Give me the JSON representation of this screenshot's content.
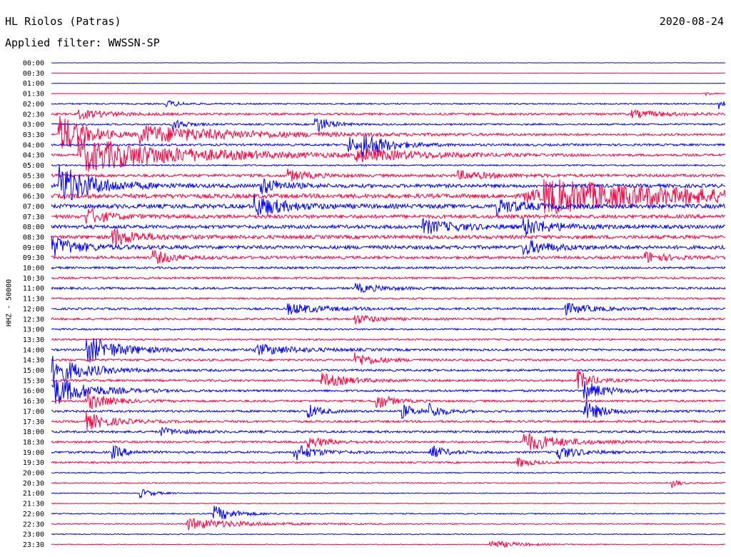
{
  "header": {
    "station": "HL Riolos (Patras)",
    "date": "2020-08-24",
    "filter": "Applied filter: WWSSN-SP"
  },
  "chart_data": {
    "type": "line",
    "title": "HL Riolos (Patras)",
    "subtitle": "Applied filter: WWSSN-SP",
    "ylabel": "HHZ - 50000",
    "xlabel": "",
    "grid": false,
    "colors": {
      "even": "#0000ff",
      "odd": "#ff0040"
    },
    "rows": [
      "00:00",
      "00:30",
      "01:00",
      "01:30",
      "02:00",
      "02:30",
      "03:00",
      "03:30",
      "04:00",
      "04:30",
      "05:00",
      "05:30",
      "06:00",
      "06:30",
      "07:00",
      "07:30",
      "08:00",
      "08:30",
      "09:00",
      "09:30",
      "10:00",
      "10:30",
      "11:00",
      "11:30",
      "12:00",
      "12:30",
      "13:00",
      "13:30",
      "14:00",
      "14:30",
      "15:00",
      "15:30",
      "16:00",
      "16:30",
      "17:00",
      "17:30",
      "18:00",
      "18:30",
      "19:00",
      "19:30",
      "20:00",
      "20:30",
      "21:00",
      "21:30",
      "22:00",
      "22:30",
      "23:00",
      "23:30"
    ],
    "noise_level": [
      0.2,
      0.2,
      0.2,
      0.3,
      1.0,
      1.5,
      1.2,
      1.5,
      1.5,
      1.5,
      1.0,
      2.0,
      2.5,
      3.0,
      3.0,
      2.5,
      2.5,
      2.5,
      2.5,
      2.0,
      1.5,
      1.5,
      1.5,
      1.2,
      1.5,
      1.5,
      1.2,
      1.2,
      1.5,
      1.5,
      1.5,
      1.5,
      1.5,
      1.5,
      1.5,
      1.5,
      1.5,
      1.5,
      1.5,
      1.2,
      0.8,
      0.8,
      0.6,
      0.6,
      0.8,
      0.8,
      0.6,
      0.6
    ],
    "events": [
      {
        "row": 3,
        "t": 0.97,
        "amp": 4,
        "dur": 0.01
      },
      {
        "row": 4,
        "t": 0.99,
        "amp": 8,
        "dur": 0.01
      },
      {
        "row": 4,
        "t": 0.17,
        "amp": 5,
        "dur": 0.02
      },
      {
        "row": 5,
        "t": 0.04,
        "amp": 6,
        "dur": 0.05
      },
      {
        "row": 5,
        "t": 0.86,
        "amp": 5,
        "dur": 0.05
      },
      {
        "row": 6,
        "t": 0.39,
        "amp": 14,
        "dur": 0.02
      },
      {
        "row": 6,
        "t": 0.18,
        "amp": 8,
        "dur": 0.02
      },
      {
        "row": 7,
        "t": 0.01,
        "amp": 30,
        "dur": 0.04
      },
      {
        "row": 7,
        "t": 0.13,
        "amp": 12,
        "dur": 0.15
      },
      {
        "row": 8,
        "t": 0.44,
        "amp": 12,
        "dur": 0.02
      },
      {
        "row": 8,
        "t": 0.46,
        "amp": 16,
        "dur": 0.04
      },
      {
        "row": 9,
        "t": 0.04,
        "amp": 25,
        "dur": 0.15
      },
      {
        "row": 9,
        "t": 0.45,
        "amp": 8,
        "dur": 0.1
      },
      {
        "row": 11,
        "t": 0.6,
        "amp": 6,
        "dur": 0.05
      },
      {
        "row": 11,
        "t": 0.35,
        "amp": 8,
        "dur": 0.03
      },
      {
        "row": 12,
        "t": 0.01,
        "amp": 30,
        "dur": 0.05
      },
      {
        "row": 12,
        "t": 0.31,
        "amp": 12,
        "dur": 0.03
      },
      {
        "row": 13,
        "t": 0.7,
        "amp": 8,
        "dur": 0.06
      },
      {
        "row": 13,
        "t": 0.73,
        "amp": 20,
        "dur": 0.25
      },
      {
        "row": 14,
        "t": 0.3,
        "amp": 16,
        "dur": 0.04
      },
      {
        "row": 14,
        "t": 0.66,
        "amp": 10,
        "dur": 0.04
      },
      {
        "row": 15,
        "t": 0.05,
        "amp": 12,
        "dur": 0.03
      },
      {
        "row": 16,
        "t": 0.55,
        "amp": 10,
        "dur": 0.05
      },
      {
        "row": 16,
        "t": 0.7,
        "amp": 12,
        "dur": 0.04
      },
      {
        "row": 17,
        "t": 0.09,
        "amp": 12,
        "dur": 0.04
      },
      {
        "row": 18,
        "t": 0.0,
        "amp": 14,
        "dur": 0.04
      },
      {
        "row": 18,
        "t": 0.7,
        "amp": 10,
        "dur": 0.04
      },
      {
        "row": 19,
        "t": 0.15,
        "amp": 10,
        "dur": 0.03
      },
      {
        "row": 19,
        "t": 0.88,
        "amp": 8,
        "dur": 0.03
      },
      {
        "row": 22,
        "t": 0.45,
        "amp": 6,
        "dur": 0.04
      },
      {
        "row": 24,
        "t": 0.35,
        "amp": 8,
        "dur": 0.05
      },
      {
        "row": 24,
        "t": 0.76,
        "amp": 8,
        "dur": 0.04
      },
      {
        "row": 25,
        "t": 0.45,
        "amp": 7,
        "dur": 0.03
      },
      {
        "row": 28,
        "t": 0.05,
        "amp": 20,
        "dur": 0.05
      },
      {
        "row": 28,
        "t": 0.3,
        "amp": 8,
        "dur": 0.06
      },
      {
        "row": 29,
        "t": 0.45,
        "amp": 10,
        "dur": 0.03
      },
      {
        "row": 30,
        "t": 0.0,
        "amp": 20,
        "dur": 0.05
      },
      {
        "row": 31,
        "t": 0.4,
        "amp": 10,
        "dur": 0.04
      },
      {
        "row": 31,
        "t": 0.78,
        "amp": 16,
        "dur": 0.02
      },
      {
        "row": 32,
        "t": 0.0,
        "amp": 22,
        "dur": 0.05
      },
      {
        "row": 32,
        "t": 0.79,
        "amp": 14,
        "dur": 0.03
      },
      {
        "row": 33,
        "t": 0.48,
        "amp": 14,
        "dur": 0.02
      },
      {
        "row": 33,
        "t": 0.05,
        "amp": 14,
        "dur": 0.03
      },
      {
        "row": 34,
        "t": 0.38,
        "amp": 10,
        "dur": 0.02
      },
      {
        "row": 34,
        "t": 0.52,
        "amp": 10,
        "dur": 0.02
      },
      {
        "row": 34,
        "t": 0.56,
        "amp": 10,
        "dur": 0.02
      },
      {
        "row": 34,
        "t": 0.79,
        "amp": 14,
        "dur": 0.03
      },
      {
        "row": 35,
        "t": 0.05,
        "amp": 12,
        "dur": 0.04
      },
      {
        "row": 36,
        "t": 0.16,
        "amp": 6,
        "dur": 0.03
      },
      {
        "row": 37,
        "t": 0.7,
        "amp": 14,
        "dur": 0.05
      },
      {
        "row": 37,
        "t": 0.38,
        "amp": 8,
        "dur": 0.03
      },
      {
        "row": 38,
        "t": 0.09,
        "amp": 10,
        "dur": 0.02
      },
      {
        "row": 38,
        "t": 0.36,
        "amp": 12,
        "dur": 0.03
      },
      {
        "row": 38,
        "t": 0.56,
        "amp": 12,
        "dur": 0.02
      },
      {
        "row": 38,
        "t": 0.75,
        "amp": 10,
        "dur": 0.03
      },
      {
        "row": 39,
        "t": 0.69,
        "amp": 8,
        "dur": 0.02
      },
      {
        "row": 41,
        "t": 0.92,
        "amp": 8,
        "dur": 0.01
      },
      {
        "row": 42,
        "t": 0.13,
        "amp": 7,
        "dur": 0.02
      },
      {
        "row": 44,
        "t": 0.24,
        "amp": 12,
        "dur": 0.03
      },
      {
        "row": 45,
        "t": 0.2,
        "amp": 8,
        "dur": 0.08
      },
      {
        "row": 47,
        "t": 0.65,
        "amp": 6,
        "dur": 0.04
      }
    ]
  }
}
